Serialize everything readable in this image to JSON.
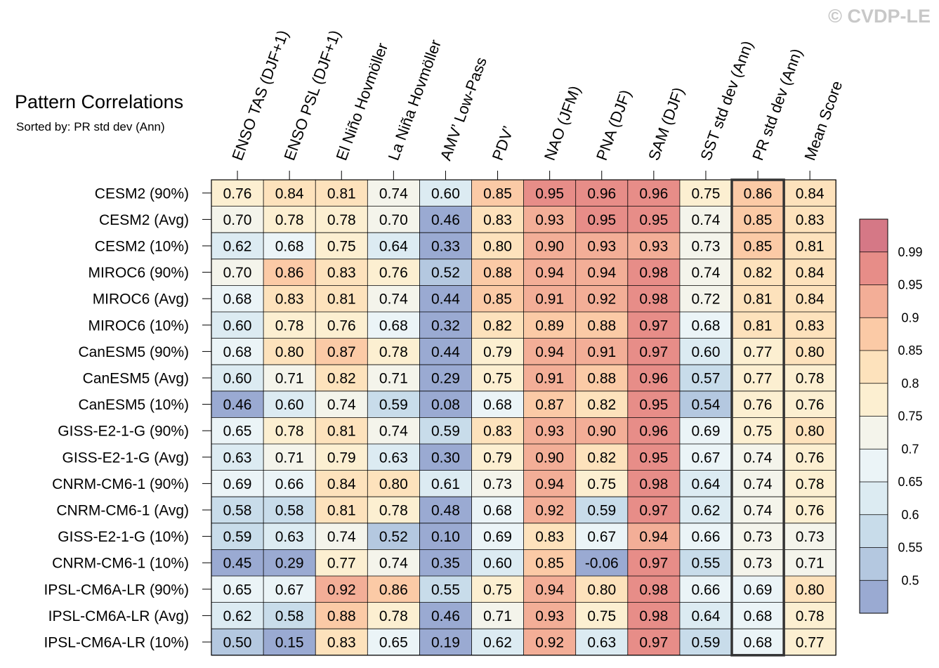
{
  "watermark": "© CVDP-LE",
  "chart_data": {
    "type": "heatmap",
    "title": "Pattern Correlations",
    "subtitle": "Sorted by: PR std dev (Ann)",
    "columns": [
      "ENSO TAS (DJF+1)",
      "ENSO PSL (DJF+1)",
      "El Niño Hovmöller",
      "La Niña Hovmöller",
      "AMV’ Low-Pass",
      "PDV’",
      "NAO (JFM)",
      "PNA (DJF)",
      "SAM (DJF)",
      "SST std dev (Ann)",
      "PR std dev (Ann)",
      "Mean Score"
    ],
    "highlighted_column": "PR std dev (Ann)",
    "rows": [
      "CESM2 (90%)",
      "CESM2 (Avg)",
      "CESM2 (10%)",
      "MIROC6 (90%)",
      "MIROC6 (Avg)",
      "MIROC6 (10%)",
      "CanESM5 (90%)",
      "CanESM5 (Avg)",
      "CanESM5 (10%)",
      "GISS-E2-1-G (90%)",
      "GISS-E2-1-G (Avg)",
      "CNRM-CM6-1 (90%)",
      "CNRM-CM6-1 (Avg)",
      "GISS-E2-1-G (10%)",
      "CNRM-CM6-1 (10%)",
      "IPSL-CM6A-LR (90%)",
      "IPSL-CM6A-LR (Avg)",
      "IPSL-CM6A-LR (10%)"
    ],
    "values": [
      [
        "0.76",
        "0.84",
        "0.81",
        "0.74",
        "0.60",
        "0.85",
        "0.95",
        "0.96",
        "0.96",
        "0.75",
        "0.86",
        "0.84"
      ],
      [
        "0.70",
        "0.78",
        "0.78",
        "0.70",
        "0.46",
        "0.83",
        "0.93",
        "0.95",
        "0.95",
        "0.74",
        "0.85",
        "0.83"
      ],
      [
        "0.62",
        "0.68",
        "0.75",
        "0.64",
        "0.33",
        "0.80",
        "0.90",
        "0.93",
        "0.93",
        "0.73",
        "0.85",
        "0.81"
      ],
      [
        "0.70",
        "0.86",
        "0.83",
        "0.76",
        "0.52",
        "0.88",
        "0.94",
        "0.94",
        "0.98",
        "0.74",
        "0.82",
        "0.84"
      ],
      [
        "0.68",
        "0.83",
        "0.81",
        "0.74",
        "0.44",
        "0.85",
        "0.91",
        "0.92",
        "0.98",
        "0.72",
        "0.81",
        "0.84"
      ],
      [
        "0.60",
        "0.78",
        "0.76",
        "0.68",
        "0.32",
        "0.82",
        "0.89",
        "0.88",
        "0.97",
        "0.68",
        "0.81",
        "0.83"
      ],
      [
        "0.68",
        "0.80",
        "0.87",
        "0.78",
        "0.44",
        "0.79",
        "0.94",
        "0.91",
        "0.97",
        "0.60",
        "0.77",
        "0.80"
      ],
      [
        "0.60",
        "0.71",
        "0.82",
        "0.71",
        "0.29",
        "0.75",
        "0.91",
        "0.88",
        "0.96",
        "0.57",
        "0.77",
        "0.78"
      ],
      [
        "0.46",
        "0.60",
        "0.74",
        "0.59",
        "0.08",
        "0.68",
        "0.87",
        "0.82",
        "0.95",
        "0.54",
        "0.76",
        "0.76"
      ],
      [
        "0.65",
        "0.78",
        "0.81",
        "0.74",
        "0.59",
        "0.83",
        "0.93",
        "0.90",
        "0.96",
        "0.69",
        "0.75",
        "0.80"
      ],
      [
        "0.63",
        "0.71",
        "0.79",
        "0.63",
        "0.30",
        "0.79",
        "0.90",
        "0.82",
        "0.95",
        "0.67",
        "0.74",
        "0.76"
      ],
      [
        "0.69",
        "0.66",
        "0.84",
        "0.80",
        "0.61",
        "0.73",
        "0.94",
        "0.75",
        "0.98",
        "0.64",
        "0.74",
        "0.78"
      ],
      [
        "0.58",
        "0.58",
        "0.81",
        "0.78",
        "0.48",
        "0.68",
        "0.92",
        "0.59",
        "0.97",
        "0.62",
        "0.74",
        "0.76"
      ],
      [
        "0.59",
        "0.63",
        "0.74",
        "0.52",
        "0.10",
        "0.69",
        "0.83",
        "0.67",
        "0.94",
        "0.66",
        "0.73",
        "0.73"
      ],
      [
        "0.45",
        "0.29",
        "0.77",
        "0.74",
        "0.35",
        "0.60",
        "0.85",
        "-0.06",
        "0.97",
        "0.55",
        "0.73",
        "0.71"
      ],
      [
        "0.65",
        "0.67",
        "0.92",
        "0.86",
        "0.55",
        "0.75",
        "0.94",
        "0.80",
        "0.98",
        "0.66",
        "0.69",
        "0.80"
      ],
      [
        "0.62",
        "0.58",
        "0.88",
        "0.78",
        "0.46",
        "0.71",
        "0.93",
        "0.75",
        "0.98",
        "0.64",
        "0.68",
        "0.78"
      ],
      [
        "0.50",
        "0.15",
        "0.83",
        "0.65",
        "0.19",
        "0.62",
        "0.92",
        "0.63",
        "0.97",
        "0.59",
        "0.68",
        "0.77"
      ]
    ],
    "colorbar": {
      "labels": [
        "0.99",
        "0.95",
        "0.9",
        "0.85",
        "0.8",
        "0.75",
        "0.7",
        "0.65",
        "0.6",
        "0.55",
        "0.5"
      ],
      "thresholds": [
        0.5,
        0.55,
        0.6,
        0.65,
        0.7,
        0.75,
        0.8,
        0.85,
        0.9,
        0.95,
        0.99
      ],
      "colors": [
        "#9aaad2",
        "#b4c8e0",
        "#c8dcea",
        "#dcebf2",
        "#ebf4f7",
        "#f4f4eb",
        "#fcefd1",
        "#fde2bc",
        "#fbcaa6",
        "#f3ae97",
        "#e78d88",
        "#d57886"
      ]
    }
  }
}
